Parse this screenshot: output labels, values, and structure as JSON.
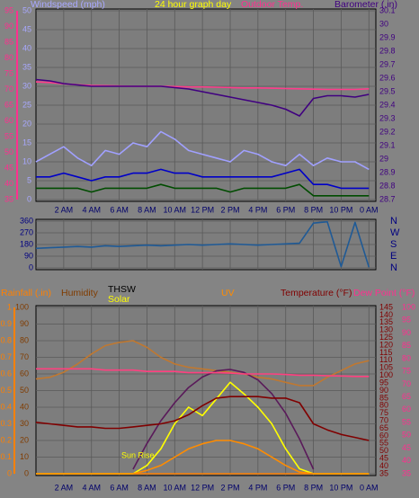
{
  "chart_data": [
    {
      "type": "line",
      "title": "24 hour graph day",
      "ylabel": "Windspeed (mph)",
      "ycolor": "#a8a8ff",
      "ylim": [
        0,
        50
      ],
      "yticks": [
        0,
        5,
        10,
        15,
        20,
        25,
        30,
        35,
        40,
        45,
        50
      ],
      "y2label": "Barometer (.in)",
      "y2color": "#400080",
      "y2lim": [
        28.7,
        30.1
      ],
      "y2ticks": [
        28.7,
        28.8,
        28.9,
        29,
        29.1,
        29.2,
        29.3,
        29.4,
        29.5,
        29.6,
        29.7,
        29.8,
        29.9,
        30,
        30.1
      ],
      "y3label": "Outdoor Temp.",
      "y3color": "#ff2f8f",
      "y3lim": [
        35,
        95
      ],
      "y3ticks": [
        35,
        40,
        45,
        50,
        55,
        60,
        65,
        70,
        75,
        80,
        85,
        90,
        95
      ],
      "grid": true,
      "x": [
        0,
        1,
        2,
        3,
        4,
        5,
        6,
        7,
        8,
        9,
        10,
        11,
        12,
        13,
        14,
        15,
        16,
        17,
        18,
        19,
        20,
        21,
        22,
        23,
        24
      ],
      "xlim": [
        0,
        24.5
      ],
      "xticks": [
        {
          "value": 2,
          "label": "2 AM"
        },
        {
          "value": 4,
          "label": "4 AM"
        },
        {
          "value": 6,
          "label": "6 AM"
        },
        {
          "value": 8,
          "label": "8 AM"
        },
        {
          "value": 10,
          "label": "10 AM"
        },
        {
          "value": 12,
          "label": "12 PM"
        },
        {
          "value": 14,
          "label": "2 PM"
        },
        {
          "value": 16,
          "label": "4 PM"
        },
        {
          "value": 18,
          "label": "6 PM"
        },
        {
          "value": 20,
          "label": "8 PM"
        },
        {
          "value": 22,
          "label": "10 PM"
        },
        {
          "value": 24,
          "label": "0 AM"
        }
      ],
      "series": [
        {
          "color": "#a0a0ff",
          "values": [
            10,
            12,
            14,
            11,
            9,
            13,
            12,
            15,
            14,
            18,
            16,
            13,
            12,
            11,
            10,
            13,
            12,
            10,
            9,
            12,
            9,
            11,
            10,
            10,
            8
          ]
        },
        {
          "color": "#0000c8",
          "values": [
            6,
            6,
            7,
            6,
            5,
            6,
            6,
            7,
            7,
            8,
            7,
            7,
            6,
            6,
            6,
            6,
            6,
            6,
            7,
            8,
            4,
            4,
            3,
            3,
            3
          ]
        },
        {
          "color": "#004c00",
          "values": [
            3,
            3,
            3,
            3,
            2,
            3,
            3,
            3,
            3,
            4,
            3,
            3,
            3,
            3,
            2,
            3,
            3,
            3,
            3,
            4,
            1,
            1,
            1,
            1,
            1
          ]
        },
        {
          "color": "#ff3c8c",
          "axis": "y3",
          "values": [
            72.4,
            72.2,
            71.8,
            71.5,
            71.3,
            71.2,
            71.1,
            71,
            71,
            71,
            70.9,
            70.8,
            70.8,
            70.7,
            70.6,
            70.5,
            70.5,
            70.4,
            70.3,
            70.2,
            70.1,
            70,
            70,
            70,
            70.2
          ]
        },
        {
          "color": "#400080",
          "axis": "y2",
          "values": [
            29.59,
            29.58,
            29.56,
            29.55,
            29.54,
            29.54,
            29.54,
            29.54,
            29.54,
            29.54,
            29.53,
            29.52,
            29.5,
            29.48,
            29.46,
            29.44,
            29.42,
            29.4,
            29.37,
            29.32,
            29.45,
            29.47,
            29.47,
            29.46,
            29.48
          ]
        }
      ]
    },
    {
      "type": "line",
      "ycolor": "#000080",
      "ylim": [
        0,
        360
      ],
      "yticks": [
        0,
        90,
        180,
        270,
        360
      ],
      "y2color": "#000080",
      "y2lim": [
        0,
        360
      ],
      "y2ticks": [
        {
          "value": 360,
          "label": "N"
        },
        {
          "value": 270,
          "label": "W"
        },
        {
          "value": 180,
          "label": "S"
        },
        {
          "value": 90,
          "label": "E"
        },
        {
          "value": 0,
          "label": "N"
        }
      ],
      "grid": true,
      "x": [
        0,
        1,
        2,
        3,
        4,
        5,
        6,
        7,
        8,
        9,
        10,
        11,
        12,
        13,
        14,
        15,
        16,
        17,
        18,
        19,
        20,
        21,
        22,
        23,
        24
      ],
      "xlim": [
        0,
        24.5
      ],
      "series": [
        {
          "color": "#1f5a96",
          "values": [
            150,
            155,
            160,
            165,
            160,
            170,
            165,
            170,
            175,
            170,
            175,
            180,
            175,
            180,
            185,
            180,
            175,
            180,
            185,
            190,
            345,
            355,
            10,
            350,
            5
          ]
        }
      ]
    },
    {
      "type": "line",
      "ylabel": "Rainfall (.in)",
      "ycolor": "#ff8000",
      "ylim": [
        0,
        1
      ],
      "yticks": [
        0,
        0.1,
        0.2,
        0.3,
        0.4,
        0.5,
        0.6,
        0.7,
        0.8,
        0.9,
        1
      ],
      "y2label": "Humidity",
      "y2color": "#803c00",
      "y2lim": [
        0,
        100
      ],
      "y2ticks": [
        0,
        10,
        20,
        30,
        40,
        50,
        60,
        70,
        80,
        90,
        100
      ],
      "y3label": "Temperature (°F)",
      "y3color": "#800000",
      "y3lim": [
        35,
        145
      ],
      "y3ticks": [
        35,
        40,
        45,
        50,
        55,
        60,
        65,
        70,
        75,
        80,
        85,
        90,
        95,
        100,
        105,
        110,
        115,
        120,
        125,
        130,
        135,
        140,
        145
      ],
      "y4label": "Dew Point (°F)",
      "y4color": "#ff2f8f",
      "y4lim": [
        35,
        100
      ],
      "y4ticks": [
        35,
        40,
        45,
        50,
        55,
        60,
        65,
        70,
        75,
        80,
        85,
        90,
        95,
        100
      ],
      "grid": true,
      "annotation": "Sun Rise",
      "x": [
        0,
        1,
        2,
        3,
        4,
        5,
        6,
        7,
        8,
        9,
        10,
        11,
        12,
        13,
        14,
        15,
        16,
        17,
        18,
        19,
        20,
        21,
        22,
        23,
        24
      ],
      "xlim": [
        0,
        24.5
      ],
      "xticks": [
        {
          "value": 2,
          "label": "2 AM"
        },
        {
          "value": 4,
          "label": "4 AM"
        },
        {
          "value": 6,
          "label": "6 AM"
        },
        {
          "value": 8,
          "label": "8 AM"
        },
        {
          "value": 10,
          "label": "10 AM"
        },
        {
          "value": 12,
          "label": "12 PM"
        },
        {
          "value": 14,
          "label": "2 PM"
        },
        {
          "value": 16,
          "label": "4 PM"
        },
        {
          "value": 18,
          "label": "6 PM"
        },
        {
          "value": 20,
          "label": "8 PM"
        },
        {
          "value": 22,
          "label": "10 PM"
        },
        {
          "value": 24,
          "label": "0 AM"
        }
      ],
      "series": [
        {
          "color": "#ff8000",
          "values": [
            0,
            0,
            0,
            0,
            0,
            0,
            0,
            0,
            0,
            0,
            0,
            0,
            0,
            0,
            0,
            0,
            0,
            0,
            0,
            0,
            0,
            0,
            0,
            0,
            0
          ]
        },
        {
          "color": "#c07830",
          "axis": "y2",
          "values": [
            57,
            58,
            61,
            66,
            72,
            77,
            79,
            80,
            76,
            70,
            66,
            64,
            63,
            62,
            61,
            60,
            58,
            57,
            55,
            53,
            53,
            58,
            62,
            66,
            68
          ]
        },
        {
          "name": "Solar",
          "color": "#ffff00",
          "axis": "y2",
          "values": [
            0,
            0,
            0,
            0,
            0,
            0,
            0,
            0,
            5,
            15,
            30,
            40,
            35,
            45,
            55,
            48,
            40,
            30,
            15,
            3,
            0,
            0,
            0,
            0,
            0
          ]
        },
        {
          "name": "UV",
          "color": "#ff8c00",
          "axis": "y2",
          "values": [
            0,
            0,
            0,
            0,
            0,
            0,
            0,
            0,
            2,
            5,
            10,
            15,
            18,
            20,
            20,
            18,
            15,
            10,
            5,
            1,
            0,
            0,
            0,
            0,
            0
          ]
        },
        {
          "name": "THSW",
          "color": "#5a1a5a",
          "axis": "y3",
          "values": [
            null,
            null,
            null,
            null,
            null,
            null,
            null,
            38,
            55,
            70,
            82,
            92,
            99,
            103,
            104,
            102,
            97,
            88,
            75,
            58,
            38,
            null,
            null,
            null,
            null
          ]
        },
        {
          "color": "#800000",
          "axis": "y3",
          "values": [
            69,
            68,
            67,
            66,
            66,
            65,
            65,
            66,
            67,
            68,
            70,
            74,
            80,
            85,
            86,
            86,
            86,
            85,
            85,
            82,
            68,
            64,
            61,
            59,
            57
          ]
        },
        {
          "color": "#ff4080",
          "axis": "y4",
          "values": [
            76,
            76,
            76,
            76,
            76,
            75.5,
            75.5,
            75.5,
            75,
            75,
            75,
            74.5,
            74.5,
            74.5,
            74.3,
            74,
            74,
            74,
            73.8,
            73.5,
            73.5,
            73.3,
            73.2,
            73,
            73
          ]
        }
      ]
    }
  ]
}
